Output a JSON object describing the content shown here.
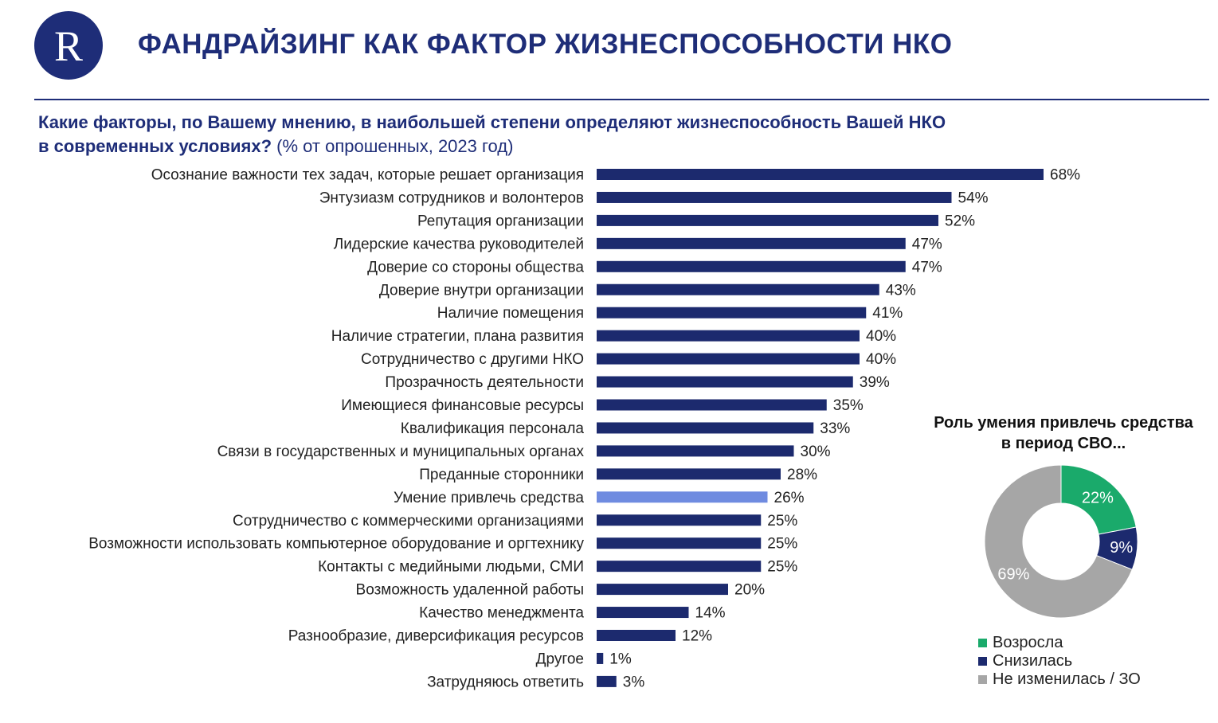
{
  "header": {
    "title": "ФАНДРАЙЗИНГ КАК ФАКТОР ЖИЗНЕСПОСОБНОСТИ НКО",
    "logo_letter": "R"
  },
  "question": {
    "line1": "Какие факторы, по Вашему мнению, в наибольшей степени определяют жизнеспособность Вашей НКО",
    "line2_bold": "в современных условиях?",
    "line2_note": " (% от опрошенных,  2023 год)"
  },
  "colors": {
    "title": "#1e2d78",
    "bar": "#1c2a6e",
    "bar_highlight": "#6f8be0",
    "donut_increased": "#1aaa6b",
    "donut_decreased": "#1c2a6e",
    "donut_unchanged": "#a6a6a6"
  },
  "chart_data": [
    {
      "type": "bar",
      "orientation": "horizontal",
      "categories": [
        "Осознание важности тех задач, которые решает организация",
        "Энтузиазм сотрудников и волонтеров",
        "Репутация организации",
        "Лидерские качества руководителей",
        "Доверие со стороны общества",
        "Доверие внутри организации",
        "Наличие помещения",
        "Наличие стратегии, плана развития",
        "Сотрудничество с другими НКО",
        "Прозрачность деятельности",
        "Имеющиеся финансовые ресурсы",
        "Квалификация персонала",
        "Связи в государственных и муниципальных органах",
        "Преданные сторонники",
        "Умение привлечь средства",
        "Сотрудничество с коммерческими организациями",
        "Возможности использовать компьютерное оборудование и оргтехнику",
        "Контакты с медийными людьми, СМИ",
        "Возможность удаленной работы",
        "Качество менеджмента",
        "Разнообразие, диверсификация ресурсов",
        "Другое",
        "Затрудняюсь ответить"
      ],
      "values": [
        68,
        54,
        52,
        47,
        47,
        43,
        41,
        40,
        40,
        39,
        35,
        33,
        30,
        28,
        26,
        25,
        25,
        25,
        20,
        14,
        12,
        1,
        3
      ],
      "value_labels": [
        "68%",
        "54%",
        "52%",
        "47%",
        "47%",
        "43%",
        "41%",
        "40%",
        "40%",
        "39%",
        "35%",
        "33%",
        "30%",
        "28%",
        "26%",
        "25%",
        "25%",
        "25%",
        "20%",
        "14%",
        "12%",
        "1%",
        "3%"
      ],
      "highlight_category": "Умение привлечь средства",
      "unit": "%",
      "grid": false
    },
    {
      "type": "pie",
      "style": "donut",
      "title": "Роль умения привлечь средства в период СВО...",
      "labels": [
        "Возросла",
        "Снизилась",
        "Не изменилась / ЗО"
      ],
      "values": [
        22,
        9,
        69
      ],
      "value_labels": [
        "22%",
        "9%",
        "69%"
      ],
      "colors": [
        "#1aaa6b",
        "#1c2a6e",
        "#a6a6a6"
      ],
      "legend_position": "bottom-left"
    }
  ]
}
